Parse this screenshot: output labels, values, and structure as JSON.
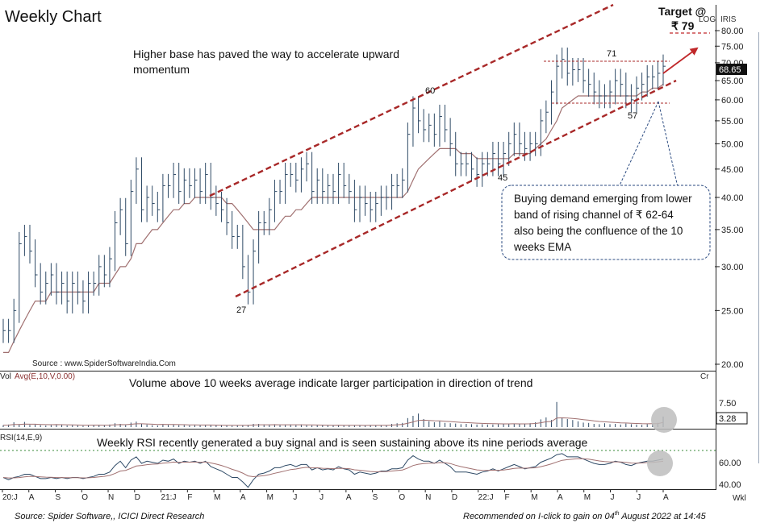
{
  "header": {
    "title": "Weekly Chart",
    "target_label": "Target @",
    "target_value": "₹ 79",
    "log_label": "LOG",
    "symbol": "IRIS"
  },
  "annotations": {
    "top_note_line1": "Higher base has paved the way to accelerate upward",
    "top_note_line2": "momentum",
    "callout_lines": [
      "Buying demand emerging from lower",
      "band of rising channel of ₹ 62-64",
      "also being the confluence of the 10",
      "weeks EMA"
    ],
    "point_labels": [
      "27",
      "60",
      "45",
      "71",
      "57"
    ],
    "source_inner": "Source : www.SpiderSoftwareIndia.Com",
    "volume_note": "Volume above 10 weeks average indicate larger participation in direction of trend",
    "rsi_note": "Weekly RSI recently generated a buy signal and is seen sustaining above its nine periods average"
  },
  "price_panel": {
    "current_price": "68.65",
    "y_ticks": [
      "80.00",
      "75.00",
      "70.00",
      "65.00",
      "60.00",
      "55.00",
      "50.00",
      "45.00",
      "40.00",
      "35.00",
      "30.00",
      "25.00",
      "20.00"
    ]
  },
  "volume_panel": {
    "label_vol": "Vol",
    "label_avg": "Avg(E,10,V,0.00)",
    "unit": "Cr",
    "y_tick": "7.50",
    "current_value": "3.28"
  },
  "rsi_panel": {
    "label": "RSI(14,E,9)",
    "y_ticks": [
      "60.00",
      "40.00"
    ]
  },
  "x_axis": {
    "labels": [
      "20:J",
      "A",
      "S",
      "O",
      "N",
      "D",
      "21:J",
      "F",
      "M",
      "A",
      "M",
      "J",
      "J",
      "A",
      "S",
      "O",
      "N",
      "D",
      "22:J",
      "F",
      "M",
      "A",
      "M",
      "J",
      "J",
      "A"
    ],
    "period": "Wkl"
  },
  "footer": {
    "source": "Source: Spider Software,, ICICI Direct Research",
    "recommended_prefix": "Recommended on I-click to gain on  04",
    "recommended_sup": "th",
    "recommended_suffix": " August 2022 at  14:45"
  },
  "colors": {
    "candle": "#2e4a66",
    "ema": "#a07070",
    "channel": "#a82828",
    "text": "#111111",
    "callout_border": "#2a4a80",
    "marker": "#bdbdbd",
    "target_arrow": "#c0282a"
  },
  "chart_data": {
    "type": "ohlc",
    "scale": "log",
    "ylim": [
      20,
      82
    ],
    "x_range": [
      "2020-07",
      "2022-08"
    ],
    "channel_upper": [
      [
        {
          "x": "2021-03",
          "y": 40
        }
      ],
      [
        {
          "x": "2022-08",
          "y": 98
        }
      ]
    ],
    "channel_lower": [
      [
        {
          "x": "2021-04",
          "y": 27
        }
      ],
      [
        {
          "x": "2022-08",
          "y": 66
        }
      ]
    ],
    "swing_points": [
      {
        "label": "27",
        "value": 27
      },
      {
        "label": "60",
        "value": 60
      },
      {
        "label": "45",
        "value": 45
      },
      {
        "label": "71",
        "value": 71
      },
      {
        "label": "57",
        "value": 57
      }
    ],
    "target": 79,
    "last_close": 68.65,
    "series": [
      {
        "name": "Price",
        "values": [
          23,
          23,
          25,
          33,
          34,
          32,
          29,
          27,
          28,
          29,
          27,
          28,
          26,
          28,
          27,
          26,
          28,
          28,
          30,
          29,
          31,
          36,
          38,
          33,
          41,
          45,
          38,
          40,
          39,
          38,
          42,
          42,
          44,
          41,
          43,
          42,
          43,
          41,
          44,
          40,
          39,
          38,
          36,
          34,
          34,
          30,
          27,
          32,
          36,
          36,
          38,
          41,
          41,
          44,
          44,
          43,
          45,
          46,
          41,
          43,
          41,
          42,
          41,
          44,
          42,
          41,
          38,
          40,
          39,
          38,
          39,
          40,
          40,
          42,
          42,
          43,
          52,
          58,
          55,
          53,
          54,
          52,
          56,
          53,
          50,
          46,
          46,
          46,
          45,
          44,
          46,
          46,
          48,
          46,
          48,
          50,
          52,
          50,
          49,
          50,
          50,
          55,
          57,
          62,
          69,
          71,
          67,
          68,
          68,
          65,
          64,
          62,
          61,
          61,
          62,
          65,
          64,
          61,
          60,
          63,
          64,
          66,
          66,
          67,
          69
        ]
      },
      {
        "name": "Avg(E,10,V,0.00)",
        "values": [
          21,
          21,
          22,
          23,
          24,
          25,
          26,
          26,
          26,
          27,
          27,
          27,
          27,
          27,
          27,
          27,
          27,
          27,
          28,
          28,
          28,
          29,
          30,
          30,
          31,
          33,
          33,
          34,
          35,
          35,
          36,
          37,
          38,
          38,
          39,
          39,
          40,
          40,
          40,
          40,
          40,
          40,
          39,
          39,
          38,
          37,
          36,
          35,
          35,
          35,
          35,
          35,
          36,
          37,
          37,
          38,
          38,
          39,
          40,
          40,
          40,
          40,
          40,
          40,
          40,
          40,
          40,
          40,
          40,
          40,
          40,
          40,
          40,
          40,
          40,
          40,
          41,
          43,
          45,
          46,
          47,
          48,
          49,
          49,
          49,
          49,
          48,
          48,
          48,
          47,
          47,
          47,
          47,
          47,
          47,
          47,
          48,
          48,
          48,
          48,
          49,
          50,
          51,
          53,
          55,
          58,
          59,
          60,
          61,
          61,
          61,
          61,
          61,
          61,
          61,
          61,
          61,
          61,
          61,
          61,
          62,
          62,
          63,
          63,
          64
        ]
      },
      {
        "name": "RSI(14,E,9)",
        "values": [
          47,
          45,
          47,
          48,
          50,
          50,
          48,
          46,
          46,
          47,
          46,
          47,
          46,
          47,
          47,
          46,
          47,
          48,
          50,
          50,
          52,
          58,
          62,
          56,
          63,
          66,
          60,
          62,
          61,
          60,
          63,
          62,
          64,
          60,
          62,
          61,
          62,
          60,
          62,
          57,
          55,
          53,
          50,
          47,
          47,
          43,
          38,
          45,
          50,
          51,
          53,
          56,
          56,
          58,
          59,
          57,
          59,
          59,
          54,
          56,
          54,
          55,
          54,
          57,
          55,
          54,
          50,
          52,
          51,
          50,
          51,
          53,
          53,
          55,
          55,
          56,
          63,
          67,
          64,
          62,
          62,
          60,
          63,
          60,
          57,
          52,
          52,
          52,
          51,
          50,
          52,
          53,
          55,
          53,
          55,
          57,
          59,
          57,
          55,
          56,
          57,
          61,
          63,
          65,
          68,
          69,
          66,
          66,
          66,
          64,
          62,
          60,
          59,
          59,
          60,
          62,
          61,
          59,
          58,
          60,
          61,
          62,
          62,
          63,
          64
        ]
      },
      {
        "name": "Volume",
        "values": [
          0.6,
          0.8,
          1.5,
          0.9,
          1.6,
          0.7,
          0.8,
          0.6,
          0.5,
          0.6,
          0.9,
          0.7,
          0.5,
          0.6,
          0.5,
          0.4,
          0.6,
          0.7,
          0.6,
          0.5,
          0.8,
          1.2,
          1.0,
          0.6,
          1.4,
          1.7,
          1.0,
          0.8,
          0.6,
          0.5,
          0.9,
          0.7,
          0.8,
          0.6,
          0.6,
          0.5,
          0.6,
          0.5,
          0.7,
          0.6,
          0.5,
          0.5,
          0.5,
          0.4,
          0.5,
          0.6,
          0.7,
          1.0,
          1.0,
          0.8,
          0.7,
          0.9,
          0.6,
          0.7,
          0.8,
          0.6,
          0.8,
          0.6,
          0.5,
          0.6,
          0.5,
          0.5,
          0.5,
          0.6,
          0.5,
          0.5,
          0.5,
          0.5,
          0.5,
          0.6,
          0.6,
          0.5,
          0.6,
          1.0,
          1.2,
          1.3,
          2.8,
          3.5,
          4.2,
          2.5,
          1.8,
          1.5,
          1.8,
          1.3,
          1.2,
          1.1,
          0.9,
          1.0,
          0.9,
          0.8,
          0.9,
          0.8,
          0.8,
          0.9,
          0.9,
          1.0,
          1.1,
          0.9,
          1.0,
          1.2,
          1.5,
          2.4,
          3.0,
          2.2,
          7.8,
          3.0,
          2.5,
          2.2,
          1.8,
          1.4,
          1.3,
          1.0,
          0.9,
          1.2,
          0.9,
          1.0,
          0.8,
          1.1,
          0.9,
          0.8,
          0.7,
          0.9,
          1.1,
          1.3,
          3.28
        ]
      }
    ]
  }
}
